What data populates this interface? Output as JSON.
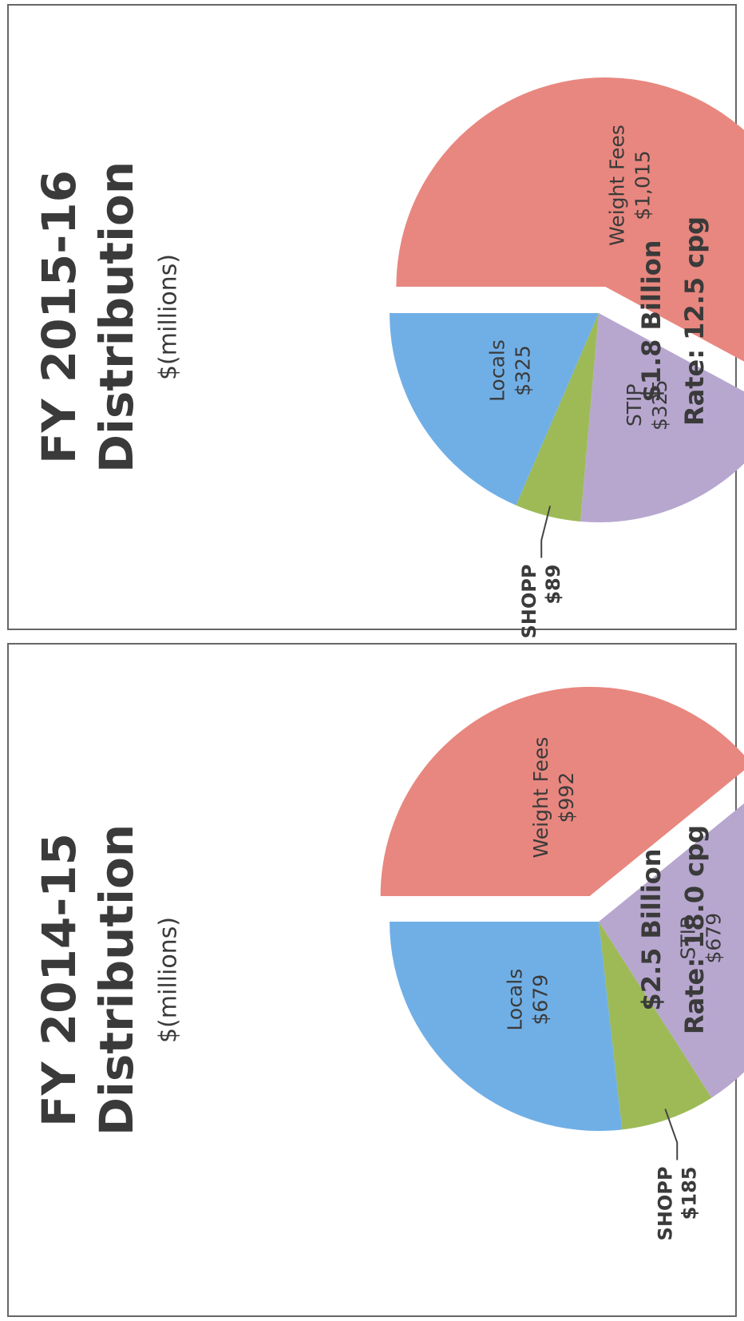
{
  "chart_data": [
    {
      "type": "pie",
      "title": [
        "FY 2014-15",
        "Distribution"
      ],
      "subtitle": "$(millions)",
      "categories": [
        "Weight Fees",
        "STIP",
        "SHOPP",
        "Locals"
      ],
      "values": [
        992,
        679,
        185,
        679
      ],
      "value_labels": [
        "$992",
        "$679",
        "$185",
        "$679"
      ],
      "colors": [
        "#e8877f",
        "#b7a7cf",
        "#9dba57",
        "#70afe6"
      ],
      "exploded": "Weight Fees",
      "annotations": [
        "$2.5 Billion",
        "Rate: 18.0 cpg"
      ]
    },
    {
      "type": "pie",
      "title": [
        "FY 2015-16",
        "Distribution"
      ],
      "subtitle": "$(millions)",
      "categories": [
        "Weight Fees",
        "STIP",
        "SHOPP",
        "Locals"
      ],
      "values": [
        1015,
        325,
        89,
        325
      ],
      "value_labels": [
        "$1,015",
        "$325",
        "$89",
        "$325"
      ],
      "colors": [
        "#e8877f",
        "#b7a7cf",
        "#9dba57",
        "#70afe6"
      ],
      "exploded": "Weight Fees",
      "annotations": [
        "$1.8 Billion",
        "Rate: 12.5 cpg"
      ]
    }
  ]
}
